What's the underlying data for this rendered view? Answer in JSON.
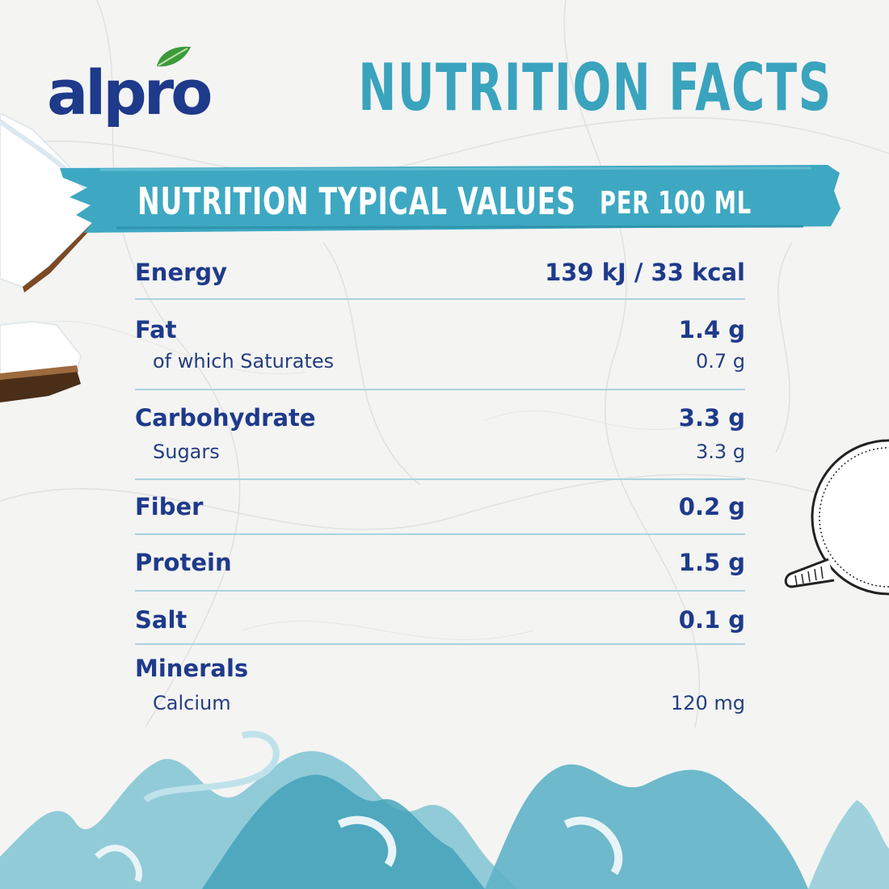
{
  "brand": {
    "name": "alpro"
  },
  "header": {
    "title": "NUTRITION FACTS"
  },
  "banner": {
    "left_label": "NUTRITION TYPICAL VALUES",
    "right_label": "PER 100 ML"
  },
  "nutrition": {
    "energy": {
      "label": "Energy",
      "value": "139 kJ / 33 kcal"
    },
    "fat": {
      "label": "Fat",
      "value": "1.4 g",
      "sub_label": "of which Saturates",
      "sub_value": "0.7 g"
    },
    "carbohydrate": {
      "label": "Carbohydrate",
      "value": "3.3 g",
      "sub_label": "Sugars",
      "sub_value": "3.3 g"
    },
    "fiber": {
      "label": "Fiber",
      "value": "0.2 g"
    },
    "protein": {
      "label": "Protein",
      "value": "1.5 g"
    },
    "salt": {
      "label": "Salt",
      "value": "0.1 g"
    },
    "minerals": {
      "label": "Minerals",
      "sub_label": "Calcium",
      "sub_value": "120 mg"
    }
  },
  "colors": {
    "brand_blue": "#1e3a8a",
    "accent_teal": "#3aa3bd",
    "divider": "#a9d3df"
  },
  "icons": [
    "leaf-icon",
    "coconut-illustration",
    "cup-illustration"
  ]
}
